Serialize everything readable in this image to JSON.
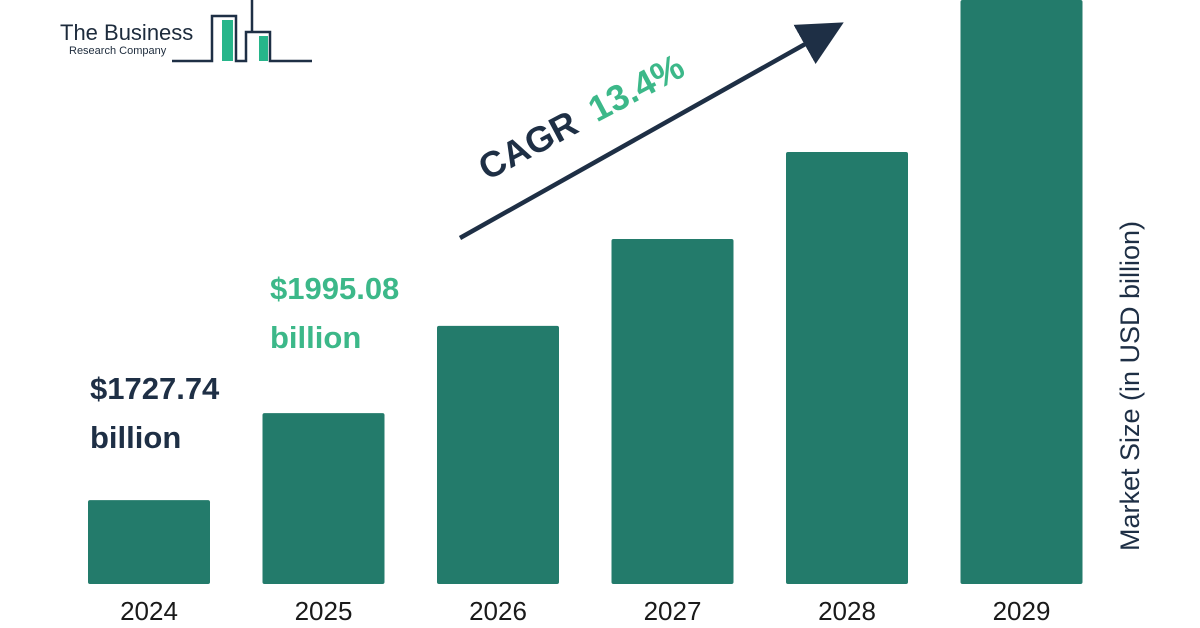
{
  "logo": {
    "line1": "The Business",
    "line2": "Research Company"
  },
  "colors": {
    "bar": "#237b6b",
    "dark_text": "#1e2f45",
    "accent_green": "#3cb889",
    "logo_accent": "#27b58a"
  },
  "cagr": {
    "label": "CAGR",
    "value": "13.4%"
  },
  "callouts": [
    {
      "year": "2024",
      "line1": "$1727.74",
      "line2": "billion",
      "style": "dark"
    },
    {
      "year": "2025",
      "line1": "$1995.08",
      "line2": "billion",
      "style": "green"
    }
  ],
  "chart_data": {
    "type": "bar",
    "categories": [
      "2024",
      "2025",
      "2026",
      "2027",
      "2028",
      "2029"
    ],
    "values": [
      1727.74,
      1995.08,
      2263,
      2530,
      2797,
      3264
    ],
    "title": "",
    "xlabel": "",
    "ylabel": "Market Size (in USD billion)",
    "ylim": [
      1470,
      3264
    ],
    "grid": false,
    "legend": "none"
  }
}
